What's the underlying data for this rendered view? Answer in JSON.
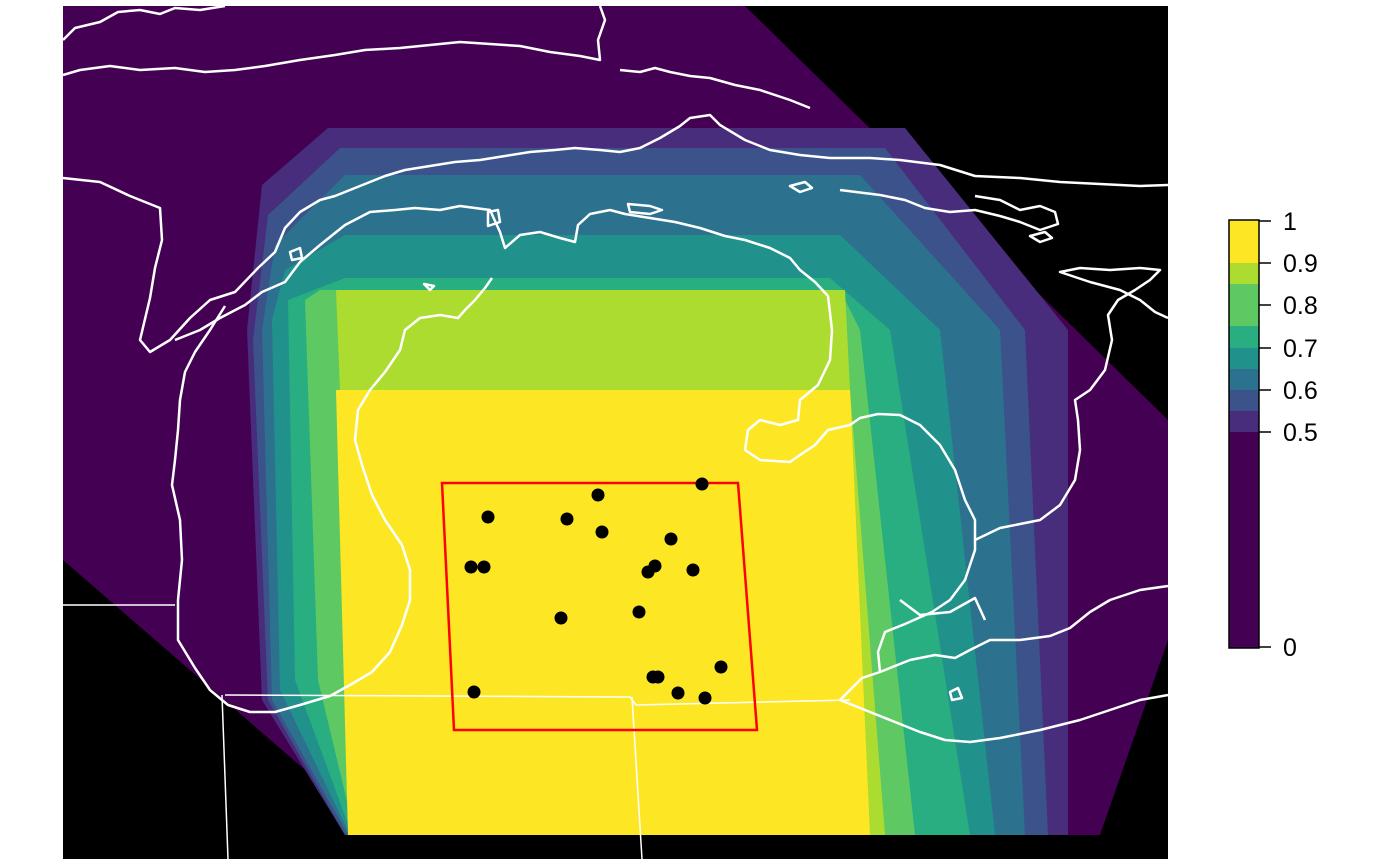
{
  "map": {
    "background": "#000000",
    "coastline_color": "#ffffff",
    "box_color": "#ff0000",
    "point_color": "#000000"
  },
  "legend": {
    "ticks": [
      {
        "value": 1,
        "label": "1"
      },
      {
        "value": 0.9,
        "label": "0.9"
      },
      {
        "value": 0.8,
        "label": "0.8"
      },
      {
        "value": 0.7,
        "label": "0.7"
      },
      {
        "value": 0.6,
        "label": "0.6"
      },
      {
        "value": 0.5,
        "label": "0.5"
      },
      {
        "value": 0,
        "label": "0"
      }
    ],
    "colors": [
      "#440154",
      "#472d7b",
      "#3b528b",
      "#2c728e",
      "#21918c",
      "#28ae80",
      "#5ec962",
      "#addc30",
      "#fde725"
    ]
  }
}
